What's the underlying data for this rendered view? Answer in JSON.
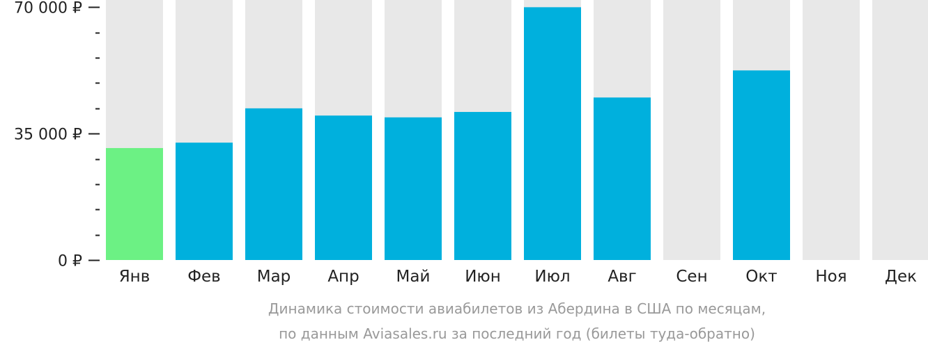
{
  "chart_data": {
    "type": "bar",
    "categories": [
      "Янв",
      "Фев",
      "Мар",
      "Апр",
      "Май",
      "Июн",
      "Июл",
      "Авг",
      "Сен",
      "Окт",
      "Ноя",
      "Дек"
    ],
    "values": [
      31000,
      32500,
      42000,
      40000,
      39500,
      41000,
      70000,
      45000,
      null,
      52500,
      null,
      null
    ],
    "ylim": [
      0,
      72000
    ],
    "y_ticks": [
      {
        "value": 0,
        "label": "0 ₽"
      },
      {
        "value": 35000,
        "label": "35 000 ₽"
      },
      {
        "value": 70000,
        "label": "70 000 ₽"
      }
    ],
    "minor_tick_step": 7000,
    "colors": {
      "bar": "#00b0dd",
      "lowest_bar": "#6cf184",
      "track": "#e8e8e8",
      "axis": "#222222"
    },
    "highlight_index": 0
  },
  "caption": {
    "line1": "Динамика стоимости авиабилетов из Абердина в США по месяцам,",
    "line2": "по данным Aviasales.ru за последний год (билеты туда-обратно)"
  }
}
